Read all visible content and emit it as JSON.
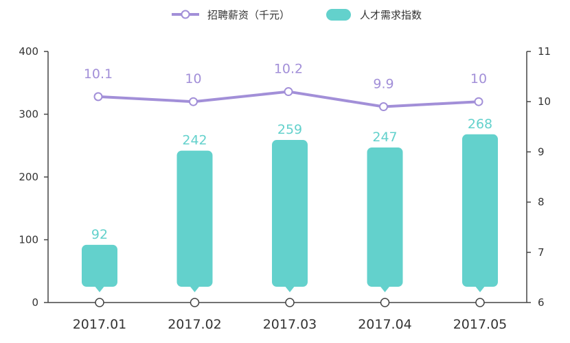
{
  "chart_data": {
    "type": "bar",
    "categories": [
      "2017.01",
      "2017.02",
      "2017.03",
      "2017.04",
      "2017.05"
    ],
    "series": [
      {
        "name": "人才需求指数",
        "type": "bar",
        "axis": "left",
        "color": "#63d1cc",
        "values": [
          92,
          242,
          259,
          247,
          268
        ]
      },
      {
        "name": "招聘薪资（千元）",
        "type": "line",
        "axis": "right",
        "color": "#a28fd8",
        "values": [
          10.1,
          10,
          10.2,
          9.9,
          10
        ]
      }
    ],
    "y_left": {
      "min": 0,
      "max": 400,
      "ticks": [
        0,
        100,
        200,
        300,
        400
      ]
    },
    "y_right": {
      "min": 6,
      "max": 11,
      "ticks": [
        6,
        7,
        8,
        9,
        10,
        11
      ]
    },
    "legend_position": "top-center",
    "grid": false
  },
  "legend": {
    "line_label": "招聘薪资（千元）",
    "bar_label": "人才需求指数"
  }
}
